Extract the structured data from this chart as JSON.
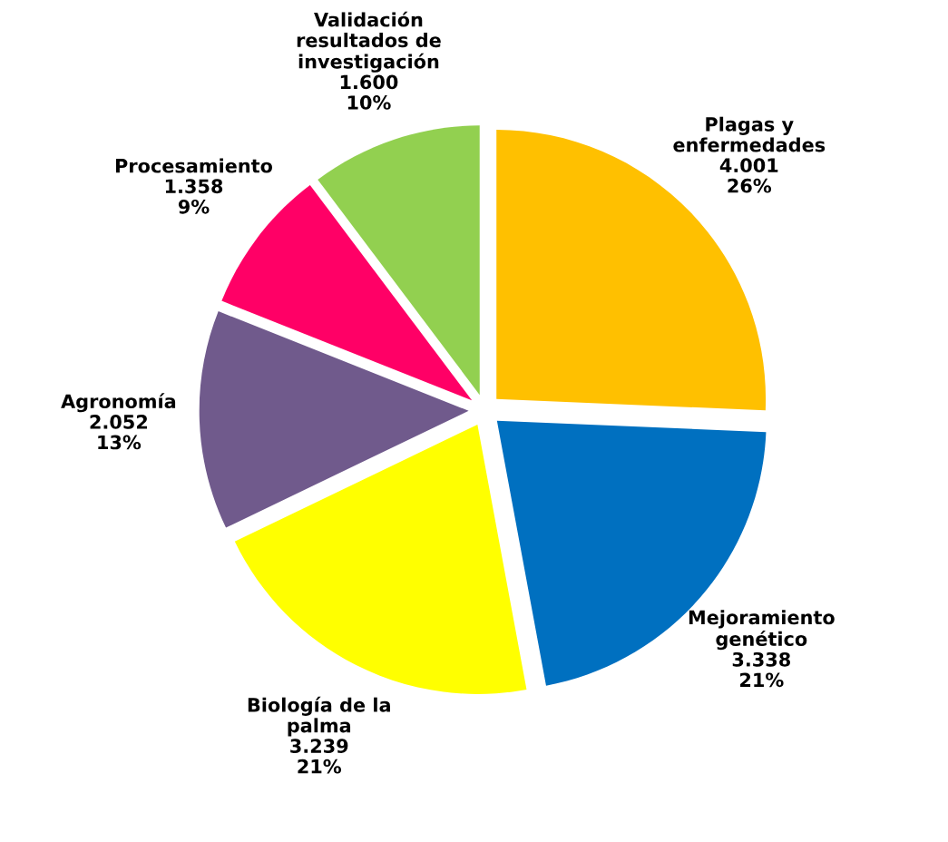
{
  "chart_data": {
    "type": "pie",
    "categories": [
      "Plagas y\nenfermedades",
      "Mejoramiento\ngenético",
      "Biología de la\npalma",
      "Agronomía",
      "Procesamiento",
      "Validación\nresultados de\ninvestigación"
    ],
    "values": [
      4001,
      3338,
      3239,
      2052,
      1358,
      1600
    ],
    "value_labels": [
      "4.001\n26%",
      "3.338\n21%",
      "3.239\n21%",
      "2.052\n13%",
      "1.358\n9%",
      "1.600\n10%"
    ],
    "colors": [
      "#ffc000",
      "#0070c0",
      "#ffff00",
      "#705a8c",
      "#ff0066",
      "#92d050"
    ]
  }
}
